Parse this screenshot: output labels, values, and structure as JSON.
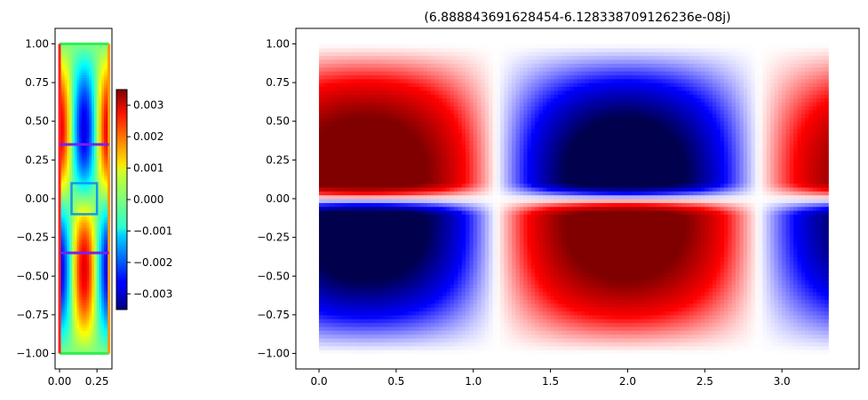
{
  "chart_data": [
    {
      "type": "heatmap",
      "title": "",
      "xlabel": "",
      "ylabel": "",
      "xlim": [
        -0.03,
        0.35
      ],
      "ylim": [
        -1.1,
        1.1
      ],
      "x_ticks": [
        0.0,
        0.25
      ],
      "x_tick_labels": [
        "0.00",
        "0.25"
      ],
      "y_ticks": [
        1.0,
        0.75,
        0.5,
        0.25,
        0.0,
        -0.25,
        -0.5,
        -0.75,
        -1.0
      ],
      "y_tick_labels": [
        "1.00",
        "0.75",
        "0.50",
        "0.25",
        "0.00",
        "−0.25",
        "−0.50",
        "−0.75",
        "−1.00"
      ],
      "colormap": "jet",
      "domain": {
        "x": [
          0.0,
          0.33
        ],
        "y": [
          -1.0,
          1.0
        ]
      },
      "overlays": [
        {
          "name": "top-boundary",
          "x": [
            0.0,
            0.33
          ],
          "y": [
            1.0,
            1.0
          ],
          "color": "#33ee55"
        },
        {
          "name": "bottom-boundary",
          "x": [
            0.0,
            0.33
          ],
          "y": [
            -1.0,
            -1.0
          ],
          "color": "#33ee55"
        },
        {
          "name": "left-boundary",
          "x": [
            0.0,
            0.0
          ],
          "y": [
            -1.0,
            1.0
          ],
          "color": "#ff2020"
        },
        {
          "name": "right-boundary",
          "x": [
            0.33,
            0.33
          ],
          "y": [
            -1.0,
            1.0
          ],
          "color": "#ff9900"
        },
        {
          "name": "upper-line",
          "x": [
            0.0,
            0.33
          ],
          "y": [
            0.35,
            0.35
          ],
          "color": "#7722ee"
        },
        {
          "name": "lower-line",
          "x": [
            0.0,
            0.33
          ],
          "y": [
            -0.35,
            -0.35
          ],
          "color": "#7722ee"
        },
        {
          "name": "center-box",
          "x": [
            0.08,
            0.25
          ],
          "y": [
            -0.1,
            0.1
          ],
          "color": "#1199ee"
        }
      ],
      "colorbar": {
        "range": [
          -0.0035,
          0.0035
        ],
        "ticks": [
          0.003,
          0.002,
          0.001,
          0.0,
          -0.001,
          -0.002,
          -0.003
        ],
        "tick_labels": [
          "0.003",
          "0.002",
          "0.001",
          "0.000",
          "−0.001",
          "−0.002",
          "−0.003"
        ]
      }
    },
    {
      "type": "heatmap",
      "title": "(6.888843691628454-6.128338709126236e-08j)",
      "xlabel": "",
      "ylabel": "",
      "xlim": [
        -0.15,
        3.5
      ],
      "ylim": [
        -1.1,
        1.1
      ],
      "x_ticks": [
        0.0,
        0.5,
        1.0,
        1.5,
        2.0,
        2.5,
        3.0
      ],
      "x_tick_labels": [
        "0.0",
        "0.5",
        "1.0",
        "1.5",
        "2.0",
        "2.5",
        "3.0"
      ],
      "y_ticks": [
        1.0,
        0.75,
        0.5,
        0.25,
        0.0,
        -0.25,
        -0.5,
        -0.75,
        -1.0
      ],
      "y_tick_labels": [
        "1.00",
        "0.75",
        "0.50",
        "0.25",
        "0.00",
        "−0.25",
        "−0.50",
        "−0.75",
        "−1.00"
      ],
      "colormap": "seismic",
      "domain": {
        "x": [
          0.0,
          3.3
        ],
        "y": [
          -1.0,
          1.0
        ]
      }
    }
  ]
}
